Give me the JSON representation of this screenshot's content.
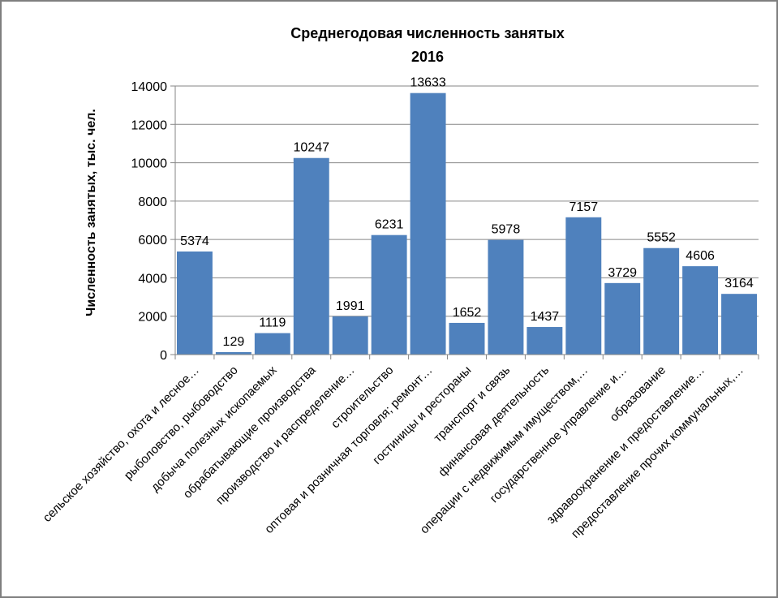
{
  "chart_data": {
    "type": "bar",
    "title_line1": "Среднегодовая численность занятых",
    "title_line2": "2016",
    "ylabel": "Численность занятых, тыс. чел.",
    "xlabel": "",
    "ylim": [
      0,
      14000
    ],
    "yticks": [
      0,
      2000,
      4000,
      6000,
      8000,
      10000,
      12000,
      14000
    ],
    "grid": true,
    "bar_color": "#4F81BD",
    "categories": [
      "сельское хозяйство, охота и лесное…",
      "рыболовство, рыбоводство",
      "добыча полезных ископаемых",
      "обрабатывающие производства",
      "производство и распределение…",
      "строительство",
      "оптовая и розничная торговля; ремонт…",
      "гостиницы и рестораны",
      "транспорт и связь",
      "финансовая деятельность",
      "операции с недвижимым имуществом,…",
      "государственное управление и…",
      "образование",
      "здравоохранение и предоставление…",
      "предоставление прочих коммунальных,…"
    ],
    "values": [
      5374,
      129,
      1119,
      10247,
      1991,
      6231,
      13633,
      1652,
      5978,
      1437,
      7157,
      3729,
      5552,
      4606,
      3164
    ]
  }
}
